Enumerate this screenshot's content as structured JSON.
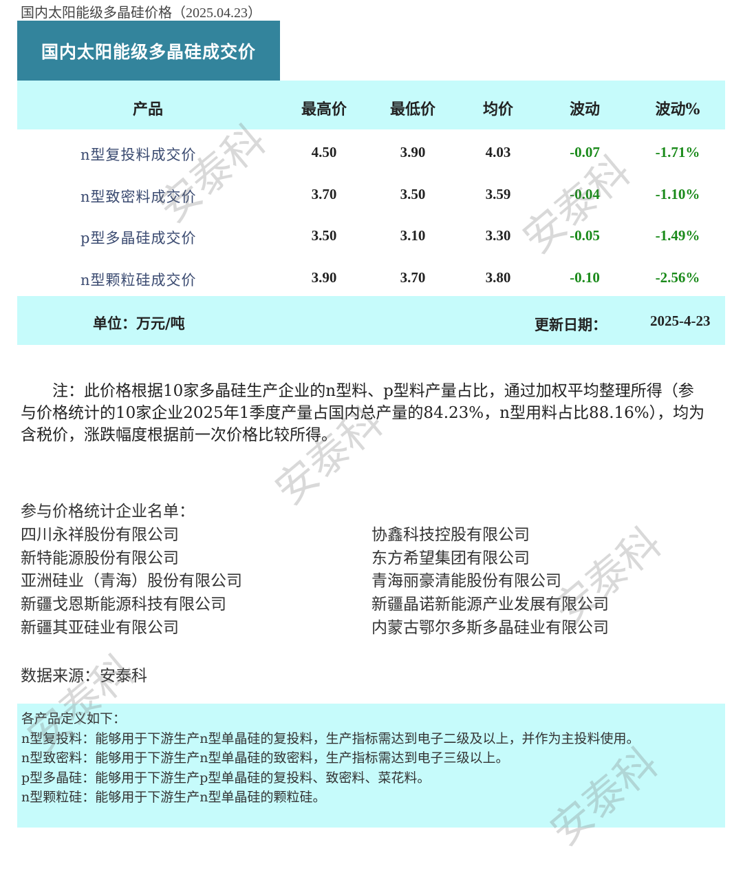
{
  "page_title": "国内太阳能级多晶硅价格（2025.04.23）",
  "banner": "国内太阳能级多晶硅成交价",
  "table": {
    "headers": [
      "产品",
      "最高价",
      "最低价",
      "均价",
      "波动",
      "波动%"
    ],
    "rows": [
      {
        "product": "n型复投料成交价",
        "high": "4.50",
        "low": "3.90",
        "avg": "4.03",
        "change": "-0.07",
        "change_pct": "-1.71%"
      },
      {
        "product": "n型致密料成交价",
        "high": "3.70",
        "low": "3.50",
        "avg": "3.59",
        "change": "-0.04",
        "change_pct": "-1.10%"
      },
      {
        "product": "p型多晶硅成交价",
        "high": "3.50",
        "low": "3.10",
        "avg": "3.30",
        "change": "-0.05",
        "change_pct": "-1.49%"
      },
      {
        "product": "n型颗粒硅成交价",
        "high": "3.90",
        "low": "3.70",
        "avg": "3.80",
        "change": "-0.10",
        "change_pct": "-2.56%"
      }
    ],
    "unit": "单位：万元/吨",
    "update_label": "更新日期：",
    "update_date": "2025-4-23"
  },
  "colors": {
    "banner": "#33849c",
    "band": "#c6fbfb",
    "change": "#1a8a1a"
  },
  "note": "　　注：此价格根据10家多晶硅生产企业的n型料、p型料产量占比，通过加权平均整理所得（参与价格统计的10家企业2025年1季度产量占国内总产量的84.23%，n型用料占比88.16%），均为含税价，涨跌幅度根据前一次价格比较所得。",
  "companies_title": "参与价格统计企业名单：",
  "companies_left": [
    "四川永祥股份有限公司",
    "新特能源股份有限公司",
    "亚洲硅业（青海）股份有限公司",
    "新疆戈恩斯能源科技有限公司",
    "新疆其亚硅业有限公司"
  ],
  "companies_right": [
    "协鑫科技控股有限公司",
    "东方希望集团有限公司",
    "青海丽豪清能股份有限公司",
    "新疆晶诺新能源产业发展有限公司",
    "内蒙古鄂尔多斯多晶硅业有限公司"
  ],
  "source": "数据来源：安泰科",
  "definitions": {
    "title": "各产品定义如下：",
    "items": [
      "n型复投料：能够用于下游生产n型单晶硅的复投料，生产指标需达到电子二级及以上，并作为主投料使用。",
      "n型致密料：能够用于下游生产n型单晶硅的致密料，生产指标需达到电子三级以上。",
      "p型多晶硅：能够用于下游生产p型单晶硅的复投料、致密料、菜花料。",
      "n型颗粒硅：能够用于下游生产n型单晶硅的颗粒硅。"
    ]
  },
  "watermark": "安泰科"
}
